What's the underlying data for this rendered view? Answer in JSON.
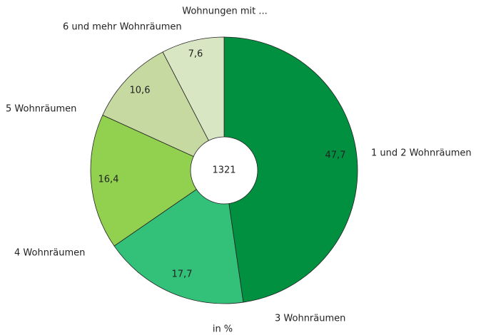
{
  "chart_data": {
    "type": "pie",
    "title": "Wohnungen mit ...",
    "subtitle": "in %",
    "center_label": "1321",
    "categories": [
      "1 und 2 Wohnräumen",
      "3 Wohnräumen",
      "4 Wohnräumen",
      "5 Wohnräumen",
      "6 und mehr Wohnräumen"
    ],
    "values": [
      47.7,
      17.7,
      16.4,
      10.6,
      7.6
    ],
    "value_labels": [
      "47,7",
      "17,7",
      "16,4",
      "10,6",
      "7,6"
    ],
    "colors": [
      "#009040",
      "#33c078",
      "#92d050",
      "#c5d9a0",
      "#d9e6c4"
    ]
  }
}
